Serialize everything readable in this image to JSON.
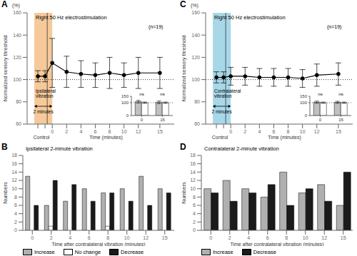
{
  "chart_data": [
    {
      "type": "line",
      "panel_label": "A",
      "title": "Right 50 Hz electrostimulation",
      "y_label": "Normalized sensory threshold",
      "unit_label": "(%)",
      "note": "(n=19)",
      "control_label": "Control",
      "x_label": "Time (minutes)",
      "x": [
        -2,
        -1,
        0,
        2,
        4,
        6,
        8,
        10,
        12,
        15
      ],
      "values": [
        103,
        103,
        115,
        107,
        105,
        104,
        106,
        104,
        106,
        106
      ],
      "errors": [
        5,
        5,
        22,
        14,
        12,
        11,
        14,
        11,
        14,
        14
      ],
      "color": "#000000",
      "marker": "circle",
      "xlim": [
        -3.5,
        17
      ],
      "xticks": [
        {
          "value": -2,
          "label": null
        },
        {
          "value": -1,
          "label": null
        },
        0,
        2,
        4,
        6,
        8,
        10,
        12,
        15
      ],
      "ylim": [
        60,
        160
      ],
      "yticks": [
        60,
        80,
        100,
        120,
        140,
        160
      ],
      "grid": false,
      "hline": 100,
      "vline": -0.7,
      "span": {
        "x": [
          -2.5,
          0
        ],
        "color": "#f5c99a",
        "labels": [
          "Ipsilateral",
          "vibration"
        ],
        "arrow_label": "2 minutes"
      },
      "inset": {
        "type": "bar",
        "categories": [
          "0",
          "15"
        ],
        "series": [
          {
            "color": "#c0c0c0",
            "values": [
              108,
              103
            ],
            "errors": [
              10,
              10
            ]
          },
          {
            "color": "#ffffff",
            "values": [
              100,
              100
            ],
            "errors": [
              5,
              5
            ]
          }
        ],
        "ylim": [
          0,
          150
        ],
        "yticks": [
          0,
          100,
          150
        ],
        "hline": 100,
        "group_labels": [
          "ns",
          "ns"
        ]
      }
    },
    {
      "type": "line",
      "panel_label": "C",
      "title": "Right 50 Hz electrostimulation",
      "y_label": "Normalized sensory threshold",
      "unit_label": "(%)",
      "note": "(n=19)",
      "control_label": "Control",
      "x_label": "Time (minutes)",
      "x": [
        -2,
        -1,
        0,
        2,
        4,
        6,
        8,
        10,
        12,
        15
      ],
      "values": [
        102,
        102,
        103,
        103,
        102,
        102,
        102,
        101,
        104,
        105
      ],
      "errors": [
        5,
        5,
        8,
        8,
        8,
        8,
        8,
        8,
        10,
        10
      ],
      "color": "#000000",
      "marker": "circle",
      "xlim": [
        -3.5,
        17
      ],
      "xticks": [
        {
          "value": -2,
          "label": null
        },
        {
          "value": -1,
          "label": null
        },
        0,
        2,
        4,
        6,
        8,
        10,
        12,
        15
      ],
      "ylim": [
        60,
        160
      ],
      "yticks": [
        60,
        80,
        100,
        120,
        140,
        160
      ],
      "grid": false,
      "hline": 100,
      "vline": -0.7,
      "span": {
        "x": [
          -2.5,
          0
        ],
        "color": "#a8d8e8",
        "labels": [
          "Contralateral",
          "vibration"
        ],
        "arrow_label": "2 minutes"
      },
      "inset": {
        "type": "bar",
        "categories": [
          "0",
          "15"
        ],
        "series": [
          {
            "color": "#c0c0c0",
            "values": [
              104,
              103
            ],
            "errors": [
              8,
              8
            ]
          },
          {
            "color": "#ffffff",
            "values": [
              100,
              100
            ],
            "errors": [
              5,
              5
            ]
          }
        ],
        "ylim": [
          0,
          150
        ],
        "yticks": [
          0,
          100,
          150
        ],
        "hline": 100,
        "group_labels": [
          "ns",
          "ns"
        ]
      }
    },
    {
      "type": "bar",
      "panel_label": "B",
      "title": "Ipsilateral 2-minute vibration",
      "x_label": "Time after contralateral vibration (minutes)",
      "y_label": "Numbers",
      "categories": [
        "0",
        "2",
        "4",
        "6",
        "8",
        "10",
        "12",
        "15"
      ],
      "series": [
        {
          "name": "Increase",
          "color": "#b0b0b0",
          "values": [
            13,
            6,
            7,
            10,
            9,
            10,
            13,
            10
          ]
        },
        {
          "name": "No change",
          "color": "#ffffff",
          "values": [
            0,
            1,
            0,
            0,
            1,
            0,
            0,
            0
          ]
        },
        {
          "name": "Decrease",
          "color": "#1a1a1a",
          "values": [
            6,
            12,
            11,
            7,
            9,
            7,
            6,
            9
          ]
        }
      ],
      "ylim": [
        0,
        18
      ],
      "yticks": [
        0,
        2,
        4,
        6,
        8,
        10,
        12,
        14,
        16,
        18
      ],
      "grid": false,
      "legend": "bottom"
    },
    {
      "type": "bar",
      "panel_label": "D",
      "title": "Contralateral 2-minute vibration",
      "x_label": "Time after contralateral vibration (minutes)",
      "y_label": "Numbers",
      "categories": [
        "0",
        "2",
        "4",
        "6",
        "8",
        "10",
        "12",
        "15"
      ],
      "series": [
        {
          "name": "Increase",
          "color": "#b0b0b0",
          "values": [
            10,
            12,
            10,
            8,
            14,
            9,
            11,
            6
          ]
        },
        {
          "name": "Decrease",
          "color": "#1a1a1a",
          "values": [
            9,
            7,
            9,
            11,
            6,
            10,
            7,
            14
          ]
        }
      ],
      "ylim": [
        0,
        18
      ],
      "yticks": [
        0,
        2,
        4,
        6,
        8,
        10,
        12,
        14,
        16,
        18
      ],
      "grid": false,
      "legend": "bottom"
    }
  ]
}
